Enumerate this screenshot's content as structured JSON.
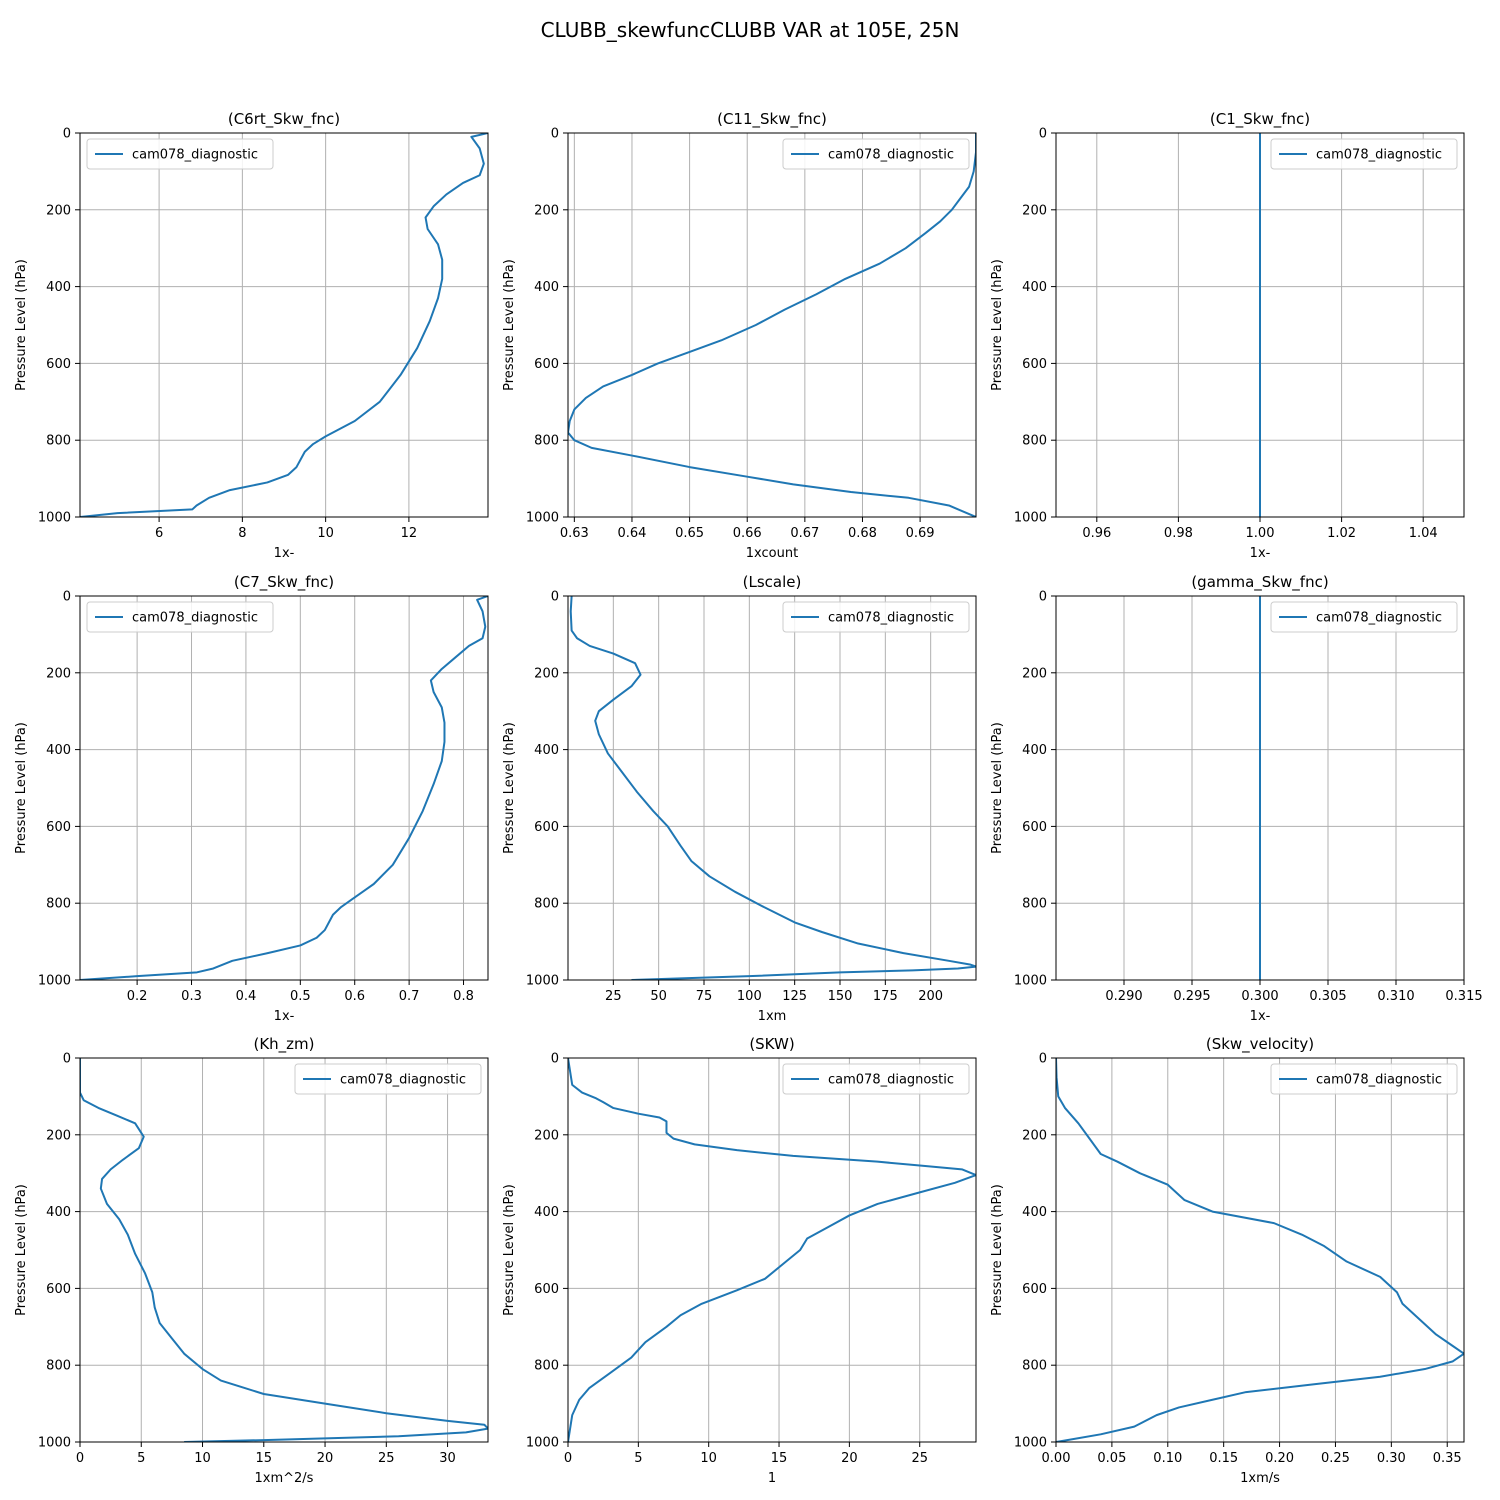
{
  "figure": {
    "suptitle": "CLUBB_skewfuncCLUBB VAR at 105E, 25N"
  },
  "colors": {
    "line": "#1f77b4",
    "grid": "#b0b0b0",
    "axes": "#000000",
    "background": "#ffffff"
  },
  "chart_data": [
    {
      "type": "line",
      "title": "(C6rt_Skw_fnc)",
      "xlabel": "1x-",
      "ylabel": "Pressure Level (hPa)",
      "xlim": [
        4.1,
        13.9
      ],
      "ylim": [
        1000,
        0
      ],
      "xticks": [
        6,
        8,
        10,
        12
      ],
      "xtick_labels": [
        "6",
        "8",
        "10",
        "12"
      ],
      "yticks": [
        0,
        200,
        400,
        600,
        800,
        1000
      ],
      "ytick_labels": [
        "0",
        "200",
        "400",
        "600",
        "800",
        "1000"
      ],
      "grid": true,
      "legend": "top-left",
      "series": [
        {
          "name": "cam078_diagnostic",
          "x": [
            13.9,
            13.5,
            13.7,
            13.8,
            13.7,
            13.3,
            12.9,
            12.6,
            12.4,
            12.45,
            12.7,
            12.8,
            12.8,
            12.7,
            12.5,
            12.2,
            11.8,
            11.3,
            10.7,
            10.0,
            9.7,
            9.5,
            9.3,
            9.1,
            8.6,
            7.7,
            7.2,
            6.9,
            6.8,
            5.0,
            4.1
          ],
          "y": [
            0,
            10,
            40,
            80,
            110,
            130,
            160,
            190,
            220,
            250,
            290,
            330,
            380,
            430,
            490,
            560,
            630,
            700,
            750,
            790,
            810,
            830,
            870,
            890,
            910,
            930,
            950,
            970,
            980,
            990,
            1000
          ]
        }
      ]
    },
    {
      "type": "line",
      "title": "(C11_Skw_fnc)",
      "xlabel": "1xcount",
      "ylabel": "Pressure Level (hPa)",
      "xlim": [
        0.6289,
        0.6997
      ],
      "ylim": [
        1000,
        0
      ],
      "xticks": [
        0.63,
        0.64,
        0.65,
        0.66,
        0.67,
        0.68,
        0.69
      ],
      "xtick_labels": [
        "0.63",
        "0.64",
        "0.65",
        "0.66",
        "0.67",
        "0.68",
        "0.69"
      ],
      "yticks": [
        0,
        200,
        400,
        600,
        800,
        1000
      ],
      "ytick_labels": [
        "0",
        "200",
        "400",
        "600",
        "800",
        "1000"
      ],
      "grid": true,
      "legend": "top-right",
      "series": [
        {
          "name": "cam078_diagnostic",
          "x": [
            0.6997,
            0.6997,
            0.6993,
            0.6985,
            0.697,
            0.6955,
            0.6935,
            0.691,
            0.6875,
            0.683,
            0.677,
            0.672,
            0.6665,
            0.6615,
            0.6555,
            0.65,
            0.6445,
            0.64,
            0.635,
            0.632,
            0.63,
            0.6292,
            0.6289,
            0.63,
            0.633,
            0.64,
            0.65,
            0.66,
            0.668,
            0.678,
            0.688,
            0.695,
            0.6997
          ],
          "y": [
            0,
            50,
            100,
            140,
            170,
            200,
            230,
            260,
            300,
            340,
            380,
            420,
            460,
            500,
            540,
            570,
            600,
            630,
            660,
            690,
            720,
            750,
            780,
            800,
            820,
            840,
            870,
            895,
            915,
            935,
            950,
            970,
            1000
          ]
        }
      ]
    },
    {
      "type": "line",
      "title": "(C1_Skw_fnc)",
      "xlabel": "1x-",
      "ylabel": "Pressure Level (hPa)",
      "xlim": [
        0.95,
        1.05
      ],
      "ylim": [
        1000,
        0
      ],
      "xticks": [
        0.96,
        0.98,
        1.0,
        1.02,
        1.04
      ],
      "xtick_labels": [
        "0.96",
        "0.98",
        "1.00",
        "1.02",
        "1.04"
      ],
      "yticks": [
        0,
        200,
        400,
        600,
        800,
        1000
      ],
      "ytick_labels": [
        "0",
        "200",
        "400",
        "600",
        "800",
        "1000"
      ],
      "grid": true,
      "legend": "top-right",
      "series": [
        {
          "name": "cam078_diagnostic",
          "x": [
            1.0,
            1.0
          ],
          "y": [
            0,
            1000
          ]
        }
      ]
    },
    {
      "type": "line",
      "title": "(C7_Skw_fnc)",
      "xlabel": "1x-",
      "ylabel": "Pressure Level (hPa)",
      "xlim": [
        0.095,
        0.845
      ],
      "ylim": [
        1000,
        0
      ],
      "xticks": [
        0.2,
        0.3,
        0.4,
        0.5,
        0.6,
        0.7,
        0.8
      ],
      "xtick_labels": [
        "0.2",
        "0.3",
        "0.4",
        "0.5",
        "0.6",
        "0.7",
        "0.8"
      ],
      "yticks": [
        0,
        200,
        400,
        600,
        800,
        1000
      ],
      "ytick_labels": [
        "0",
        "200",
        "400",
        "600",
        "800",
        "1000"
      ],
      "grid": true,
      "legend": "top-left",
      "series": [
        {
          "name": "cam078_diagnostic",
          "x": [
            0.845,
            0.825,
            0.835,
            0.84,
            0.835,
            0.81,
            0.785,
            0.76,
            0.74,
            0.745,
            0.76,
            0.765,
            0.765,
            0.76,
            0.745,
            0.725,
            0.7,
            0.67,
            0.635,
            0.595,
            0.575,
            0.56,
            0.545,
            0.53,
            0.5,
            0.44,
            0.375,
            0.34,
            0.31,
            0.2,
            0.095
          ],
          "y": [
            0,
            10,
            40,
            80,
            110,
            130,
            160,
            190,
            220,
            250,
            290,
            330,
            380,
            430,
            490,
            560,
            630,
            700,
            750,
            790,
            810,
            830,
            870,
            890,
            910,
            930,
            950,
            970,
            980,
            990,
            1000
          ]
        }
      ]
    },
    {
      "type": "line",
      "title": "(Lscale)",
      "xlabel": "1xm",
      "ylabel": "Pressure Level (hPa)",
      "xlim": [
        0,
        225
      ],
      "ylim": [
        1000,
        0
      ],
      "xticks": [
        25,
        50,
        75,
        100,
        125,
        150,
        175,
        200
      ],
      "xtick_labels": [
        "25",
        "50",
        "75",
        "100",
        "125",
        "150",
        "175",
        "200"
      ],
      "yticks": [
        0,
        200,
        400,
        600,
        800,
        1000
      ],
      "ytick_labels": [
        "0",
        "200",
        "400",
        "600",
        "800",
        "1000"
      ],
      "grid": true,
      "legend": "top-right",
      "series": [
        {
          "name": "cam078_diagnostic",
          "x": [
            2,
            1.5,
            2,
            5,
            12,
            25,
            37,
            40,
            35,
            25,
            17,
            15,
            17,
            22,
            30,
            38,
            47,
            55,
            62,
            68,
            78,
            92,
            108,
            125,
            140,
            160,
            185,
            210,
            222,
            225,
            215,
            190,
            150,
            100,
            35
          ],
          "y": [
            0,
            40,
            90,
            110,
            130,
            150,
            175,
            205,
            235,
            270,
            300,
            325,
            360,
            410,
            460,
            510,
            560,
            600,
            650,
            690,
            730,
            770,
            810,
            850,
            875,
            905,
            930,
            950,
            960,
            965,
            970,
            975,
            980,
            990,
            1000
          ]
        }
      ]
    },
    {
      "type": "line",
      "title": "(gamma_Skw_fnc)",
      "xlabel": "1x-",
      "ylabel": "Pressure Level (hPa)",
      "xlim": [
        0.285,
        0.315
      ],
      "ylim": [
        1000,
        0
      ],
      "xticks": [
        0.29,
        0.295,
        0.3,
        0.305,
        0.31,
        0.315
      ],
      "xtick_labels": [
        "0.290",
        "0.295",
        "0.300",
        "0.305",
        "0.310",
        "0.315"
      ],
      "yticks": [
        0,
        200,
        400,
        600,
        800,
        1000
      ],
      "ytick_labels": [
        "0",
        "200",
        "400",
        "600",
        "800",
        "1000"
      ],
      "grid": true,
      "legend": "top-right",
      "series": [
        {
          "name": "cam078_diagnostic",
          "x": [
            0.3,
            0.3
          ],
          "y": [
            0,
            1000
          ]
        }
      ]
    },
    {
      "type": "line",
      "title": "(Kh_zm)",
      "xlabel": "1xm^2/s",
      "ylabel": "Pressure Level (hPa)",
      "xlim": [
        0,
        33.3
      ],
      "ylim": [
        1000,
        0
      ],
      "xticks": [
        0,
        5,
        10,
        15,
        20,
        25,
        30
      ],
      "xtick_labels": [
        "0",
        "5",
        "10",
        "15",
        "20",
        "25",
        "30"
      ],
      "yticks": [
        0,
        200,
        400,
        600,
        800,
        1000
      ],
      "ytick_labels": [
        "0",
        "200",
        "400",
        "600",
        "800",
        "1000"
      ],
      "grid": true,
      "legend": "top-right",
      "series": [
        {
          "name": "cam078_diagnostic",
          "x": [
            0,
            0,
            0.3,
            1.5,
            3,
            4.5,
            5.2,
            4.8,
            3.5,
            2.5,
            1.8,
            1.7,
            2.2,
            3.2,
            3.9,
            4.5,
            5.3,
            5.9,
            6.1,
            6.5,
            7.5,
            8.5,
            10,
            11.5,
            13,
            15,
            20,
            25,
            30,
            33,
            33.3,
            31.5,
            26,
            15,
            8.5
          ],
          "y": [
            0,
            90,
            110,
            130,
            150,
            170,
            205,
            235,
            265,
            290,
            315,
            340,
            380,
            420,
            460,
            510,
            560,
            610,
            650,
            690,
            730,
            770,
            810,
            840,
            855,
            875,
            900,
            925,
            945,
            955,
            965,
            975,
            985,
            995,
            1000
          ]
        }
      ]
    },
    {
      "type": "line",
      "title": "(SKW)",
      "xlabel": "1",
      "ylabel": "Pressure Level (hPa)",
      "xlim": [
        0,
        29
      ],
      "ylim": [
        1000,
        0
      ],
      "xticks": [
        0,
        5,
        10,
        15,
        20,
        25
      ],
      "xtick_labels": [
        "0",
        "5",
        "10",
        "15",
        "20",
        "25"
      ],
      "yticks": [
        0,
        200,
        400,
        600,
        800,
        1000
      ],
      "ytick_labels": [
        "0",
        "200",
        "400",
        "600",
        "800",
        "1000"
      ],
      "grid": true,
      "legend": "top-right",
      "series": [
        {
          "name": "cam078_diagnostic",
          "x": [
            0,
            0.3,
            1,
            2,
            2.5,
            3.2,
            5,
            6.5,
            7,
            7,
            7.5,
            9,
            12,
            16,
            22,
            25,
            28,
            29,
            27.5,
            25,
            22,
            20,
            18.5,
            17,
            16.5,
            15.5,
            14,
            12,
            9.5,
            8,
            7,
            5.5,
            4.5,
            3,
            1.5,
            0.8,
            0.3,
            0
          ],
          "y": [
            0,
            70,
            90,
            105,
            115,
            130,
            145,
            155,
            165,
            195,
            210,
            225,
            240,
            255,
            270,
            280,
            290,
            305,
            325,
            350,
            380,
            410,
            440,
            470,
            500,
            530,
            575,
            605,
            640,
            670,
            700,
            740,
            780,
            820,
            860,
            890,
            930,
            1000
          ]
        }
      ]
    },
    {
      "type": "line",
      "title": "(Skw_velocity)",
      "xlabel": "1xm/s",
      "ylabel": "Pressure Level (hPa)",
      "xlim": [
        0,
        0.365
      ],
      "ylim": [
        1000,
        0
      ],
      "xticks": [
        0,
        0.05,
        0.1,
        0.15,
        0.2,
        0.25,
        0.3,
        0.35
      ],
      "xtick_labels": [
        "0.00",
        "0.05",
        "0.10",
        "0.15",
        "0.20",
        "0.25",
        "0.30",
        "0.35"
      ],
      "yticks": [
        0,
        200,
        400,
        600,
        800,
        1000
      ],
      "ytick_labels": [
        "0",
        "200",
        "400",
        "600",
        "800",
        "1000"
      ],
      "grid": true,
      "legend": "top-right",
      "series": [
        {
          "name": "cam078_diagnostic",
          "x": [
            0,
            0.0005,
            0.002,
            0.008,
            0.02,
            0.03,
            0.04,
            0.055,
            0.075,
            0.1,
            0.115,
            0.14,
            0.195,
            0.22,
            0.24,
            0.26,
            0.29,
            0.305,
            0.31,
            0.325,
            0.34,
            0.355,
            0.365,
            0.355,
            0.33,
            0.29,
            0.23,
            0.17,
            0.14,
            0.11,
            0.09,
            0.07,
            0.04,
            0.01,
            0
          ],
          "y": [
            0,
            50,
            100,
            130,
            170,
            210,
            250,
            270,
            300,
            330,
            370,
            400,
            430,
            460,
            490,
            530,
            570,
            610,
            640,
            680,
            720,
            750,
            770,
            790,
            810,
            830,
            850,
            870,
            890,
            910,
            930,
            960,
            980,
            995,
            1000
          ]
        }
      ]
    }
  ]
}
